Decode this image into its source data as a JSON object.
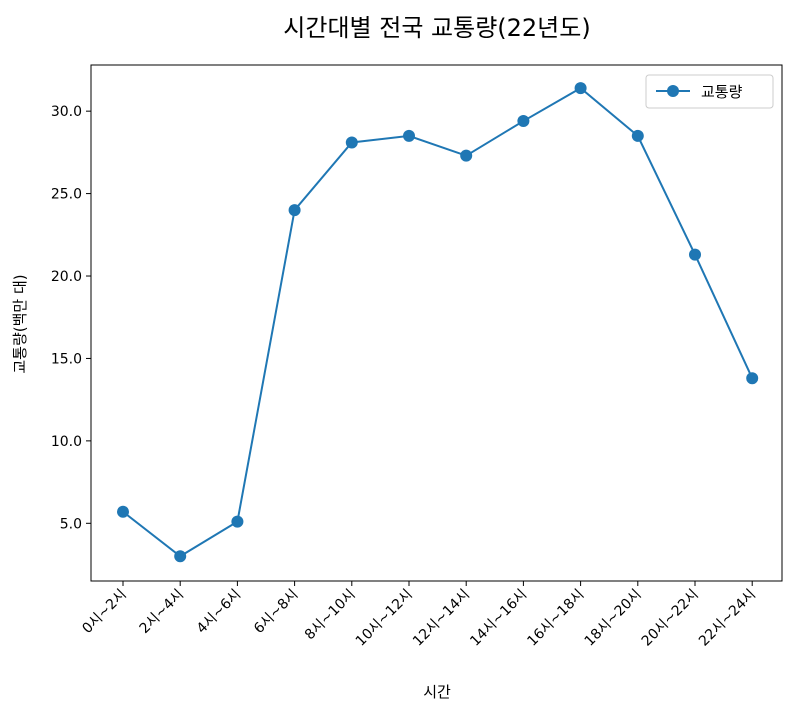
{
  "chart_data": {
    "type": "line",
    "title": "시간대별 전국 교통량(22년도)",
    "xlabel": "시간",
    "ylabel": "교통량(백만 대)",
    "categories": [
      "0시~2시",
      "2시~4시",
      "4시~6시",
      "6시~8시",
      "8시~10시",
      "10시~12시",
      "12시~14시",
      "14시~16시",
      "16시~18시",
      "18시~20시",
      "20시~22시",
      "22시~24시"
    ],
    "series": [
      {
        "name": "교통량",
        "values": [
          5.7,
          3.0,
          5.1,
          24.0,
          28.1,
          28.5,
          27.3,
          29.4,
          31.4,
          28.5,
          21.3,
          13.8
        ],
        "color": "#1f77b4"
      }
    ],
    "ylim": [
      1.5,
      32.8
    ],
    "yticks": [
      5.0,
      10.0,
      15.0,
      20.0,
      25.0,
      30.0
    ],
    "ytick_labels": [
      "5.0",
      "10.0",
      "15.0",
      "20.0",
      "25.0",
      "30.0"
    ],
    "grid": false,
    "legend_position": "top-right",
    "marker": "circle"
  }
}
